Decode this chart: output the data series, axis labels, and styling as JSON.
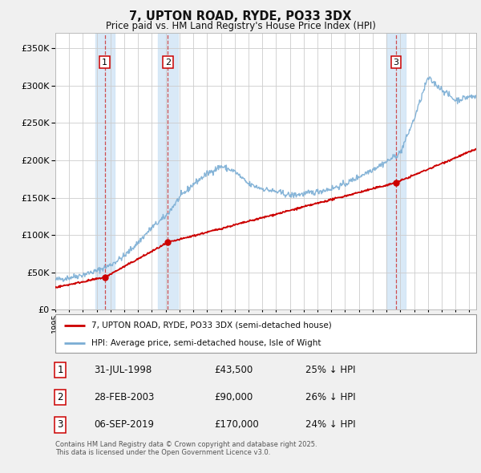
{
  "title": "7, UPTON ROAD, RYDE, PO33 3DX",
  "subtitle": "Price paid vs. HM Land Registry's House Price Index (HPI)",
  "ylim": [
    0,
    370000
  ],
  "yticks": [
    0,
    50000,
    100000,
    150000,
    200000,
    250000,
    300000,
    350000
  ],
  "background_color": "#f0f0f0",
  "plot_bg_color": "#ffffff",
  "grid_color": "#cccccc",
  "sale_color": "#cc0000",
  "hpi_color": "#7aadd4",
  "transaction_line_color": "#cc3333",
  "shade_color": "#d0e4f5",
  "transactions": [
    {
      "label": "1",
      "date_x": 1998.58,
      "price": 43500
    },
    {
      "label": "2",
      "date_x": 2003.16,
      "price": 90000
    },
    {
      "label": "3",
      "date_x": 2019.68,
      "price": 170000
    }
  ],
  "legend_sale_label": "7, UPTON ROAD, RYDE, PO33 3DX (semi-detached house)",
  "legend_hpi_label": "HPI: Average price, semi-detached house, Isle of Wight",
  "footnote": "Contains HM Land Registry data © Crown copyright and database right 2025.\nThis data is licensed under the Open Government Licence v3.0.",
  "table_rows": [
    {
      "num": "1",
      "date": "31-JUL-1998",
      "price": "£43,500",
      "pct": "25% ↓ HPI"
    },
    {
      "num": "2",
      "date": "28-FEB-2003",
      "price": "£90,000",
      "pct": "26% ↓ HPI"
    },
    {
      "num": "3",
      "date": "06-SEP-2019",
      "price": "£170,000",
      "pct": "24% ↓ HPI"
    }
  ],
  "xmin": 1995.0,
  "xmax": 2025.5
}
